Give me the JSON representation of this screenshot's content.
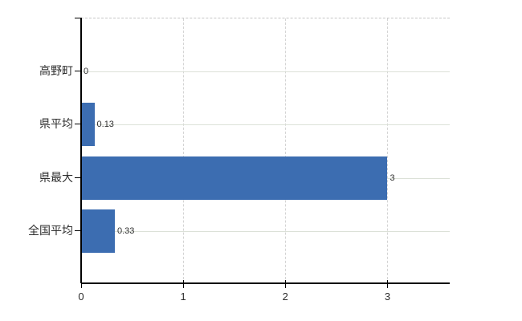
{
  "chart_data": {
    "type": "bar",
    "orientation": "horizontal",
    "title": "",
    "xlabel": "",
    "ylabel": "",
    "categories": [
      "高野町",
      "県平均",
      "県最大",
      "全国平均"
    ],
    "values": [
      0,
      0.13,
      3,
      0.33
    ],
    "value_labels": [
      "0",
      "0.13",
      "3",
      "0.33"
    ],
    "x_ticks": [
      0,
      1,
      2,
      3
    ],
    "x_tick_labels": [
      "0",
      "1",
      "2",
      "3"
    ],
    "xlim": [
      0,
      3.61
    ],
    "grid": true,
    "legend": false,
    "colors": {
      "bar": "#3c6db1",
      "axis": "#000000",
      "grid_vertical": "#d4d4d4",
      "grid_horizontal": "#dce1d8",
      "plot_border_top": "#c6c6c6",
      "text": "#2e2e2e",
      "background": "#ffffff"
    }
  }
}
